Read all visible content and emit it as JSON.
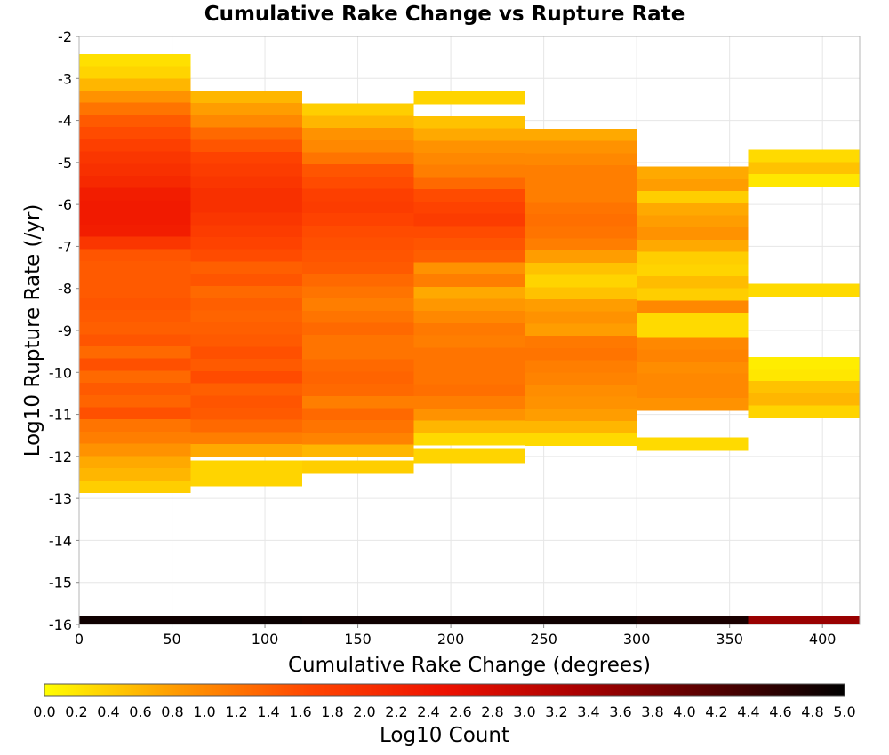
{
  "chart_data": {
    "type": "heatmap",
    "title": "Cumulative Rake Change vs Rupture Rate",
    "xlabel": "Cumulative Rake Change (degrees)",
    "ylabel": "Log10 Rupture Rate (/yr)",
    "xlim": [
      0,
      420
    ],
    "ylim": [
      -16,
      -2
    ],
    "x_ticks": [
      "0",
      "50",
      "100",
      "150",
      "200",
      "250",
      "300",
      "350",
      "400"
    ],
    "y_ticks": [
      "-2",
      "-3",
      "-4",
      "-5",
      "-6",
      "-7",
      "-8",
      "-9",
      "-10",
      "-11",
      "-12",
      "-13",
      "-14",
      "-15",
      "-16"
    ],
    "x_bin_edges": [
      0,
      60,
      120,
      180,
      240,
      300,
      360,
      420
    ],
    "y_bin_height": 0.29,
    "grid": true,
    "colorbar": {
      "label": "Log10 Count",
      "min": 0.0,
      "max": 5.0,
      "ticks": [
        "0.0",
        "0.2",
        "0.4",
        "0.6",
        "0.8",
        "1.0",
        "1.2",
        "1.4",
        "1.6",
        "1.8",
        "2.0",
        "2.2",
        "2.4",
        "2.6",
        "2.8",
        "3.0",
        "3.2",
        "3.4",
        "3.6",
        "3.8",
        "4.0",
        "4.2",
        "4.4",
        "4.6",
        "4.8",
        "5.0"
      ],
      "colormap": [
        "#ffff00",
        "#ff9900",
        "#ff4400",
        "#ee1100",
        "#aa0000",
        "#550000",
        "#000000"
      ]
    },
    "columns": [
      {
        "x_start": 0,
        "y_top": -2.42,
        "values": [
          0.25,
          0.35,
          0.6,
          0.9,
          1.2,
          1.45,
          1.6,
          1.75,
          1.9,
          2.0,
          2.1,
          2.3,
          2.35,
          2.35,
          2.3,
          1.9,
          1.5,
          1.45,
          1.45,
          1.45,
          1.5,
          1.45,
          1.4,
          1.5,
          1.3,
          1.55,
          1.3,
          1.45,
          1.35,
          1.55,
          1.2,
          1.1,
          0.9,
          0.7,
          0.6,
          0.4
        ]
      },
      {
        "x_start": 60,
        "y_top": -3.3,
        "values": [
          0.6,
          0.8,
          1.0,
          1.3,
          1.5,
          1.7,
          1.8,
          1.9,
          2.0,
          2.0,
          1.9,
          1.8,
          1.7,
          1.6,
          1.4,
          1.5,
          1.3,
          1.4,
          1.35,
          1.4,
          1.45,
          1.55,
          1.45,
          1.6,
          1.4,
          1.5,
          1.45,
          1.3,
          1.1,
          0.7
        ]
      },
      {
        "x_start": 120,
        "y_top": -3.6,
        "values": [
          0.4,
          0.6,
          0.9,
          1.0,
          1.2,
          1.5,
          1.6,
          1.75,
          1.8,
          1.7,
          1.6,
          1.55,
          1.5,
          1.45,
          1.3,
          1.2,
          1.1,
          1.2,
          1.3,
          1.2,
          1.2,
          1.3,
          1.35,
          1.3,
          1.1,
          1.3,
          1.2,
          1.05,
          0.6
        ]
      },
      {
        "x_start": 180,
        "y_top": -3.9,
        "values": [
          0.5,
          0.7,
          0.9,
          1.0,
          1.1,
          1.3,
          1.6,
          1.7,
          1.8,
          1.6,
          1.5,
          1.4,
          0.9,
          1.1,
          0.7,
          0.85,
          1.0,
          1.15,
          1.1,
          1.2,
          1.2,
          1.2,
          1.25,
          1.1,
          0.9,
          0.6,
          0.3
        ]
      },
      {
        "x_start": 240,
        "y_top": -4.2,
        "values": [
          0.7,
          0.9,
          1.0,
          1.1,
          1.1,
          1.1,
          1.2,
          1.25,
          1.2,
          1.1,
          0.8,
          0.5,
          0.35,
          0.5,
          0.8,
          0.9,
          0.8,
          1.15,
          1.2,
          1.1,
          1.05,
          0.95,
          0.9,
          0.8,
          0.6,
          0.3
        ]
      },
      {
        "x_start": 300,
        "y_top": -5.1,
        "values": [
          0.7,
          0.8,
          0.4,
          0.7,
          0.8,
          0.9,
          0.7,
          0.4,
          0.35,
          0.55,
          0.4,
          1.0,
          0.3,
          0.3,
          1.0,
          1.05,
          0.95,
          1.0,
          1.0,
          0.9
        ]
      },
      {
        "x_start": 360,
        "y_top": -4.7,
        "values": [
          0.3,
          0.5,
          0.2,
          0.0,
          0.0,
          0.0,
          0.0,
          0.0,
          0.0,
          0.0,
          0.0,
          0.3,
          0.0,
          0.0,
          0.0,
          0.0,
          0.0,
          0.15,
          0.2,
          0.5,
          0.6,
          0.35
        ]
      }
    ],
    "extra_cells": [
      {
        "x_start": 60,
        "x_end": 120,
        "y_top": -12.1,
        "y_bottom": -12.7,
        "value": 0.35
      },
      {
        "x_start": 120,
        "x_end": 180,
        "y_top": -12.1,
        "y_bottom": -12.4,
        "value": 0.4
      },
      {
        "x_start": 180,
        "x_end": 240,
        "y_top": -11.8,
        "y_bottom": -12.15,
        "value": 0.35
      },
      {
        "x_start": 180,
        "x_end": 240,
        "y_top": -3.3,
        "y_bottom": -3.6,
        "value": 0.35
      },
      {
        "x_start": 300,
        "x_end": 360,
        "y_top": -11.55,
        "y_bottom": -11.85,
        "value": 0.3
      }
    ],
    "bottom_row": {
      "y_top": -15.8,
      "y_bottom": -16.0,
      "values": [
        4.85,
        4.9,
        4.85,
        4.85,
        4.85,
        4.75,
        3.5
      ]
    }
  }
}
